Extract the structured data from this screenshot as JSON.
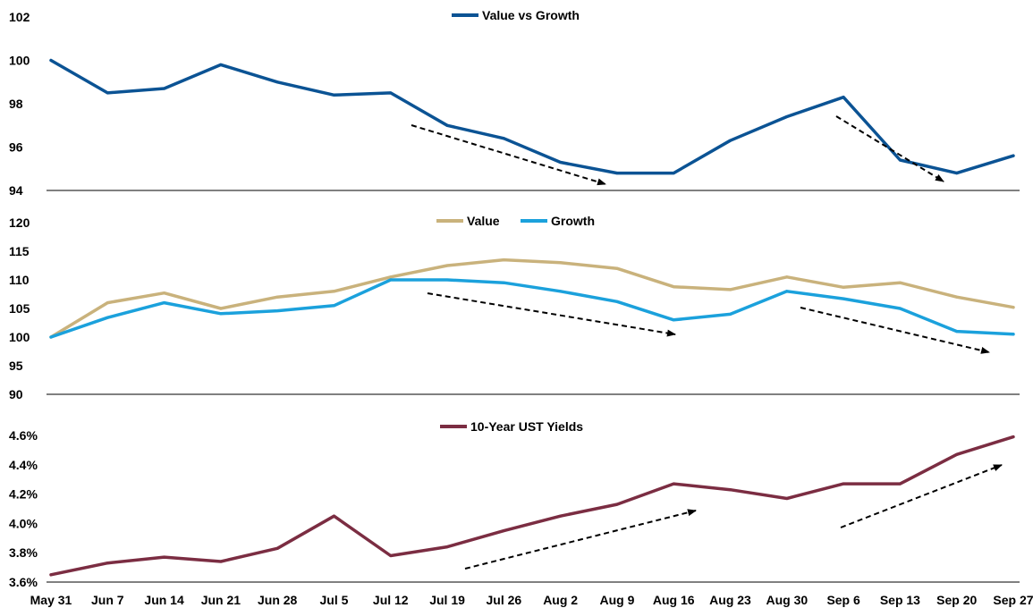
{
  "chart_data": {
    "type": "line",
    "x": [
      "May 31",
      "Jun 7",
      "Jun 14",
      "Jun 21",
      "Jun 28",
      "Jul 5",
      "Jul 12",
      "Jul 19",
      "Jul 26",
      "Aug 2",
      "Aug 9",
      "Aug 16",
      "Aug 23",
      "Aug 30",
      "Sep 6",
      "Sep 13",
      "Sep 20",
      "Sep 27"
    ],
    "panels": [
      {
        "ylim": [
          94,
          102
        ],
        "yticks": [
          "94",
          "96",
          "98",
          "100",
          "102"
        ],
        "series": [
          {
            "name": "Value vs Growth",
            "color": "#0b5394",
            "values": [
              100.0,
              98.5,
              98.7,
              99.8,
              99.0,
              98.4,
              98.5,
              97.0,
              96.4,
              95.3,
              94.8,
              94.8,
              96.3,
              97.4,
              98.3,
              95.4,
              94.8,
              95.6
            ]
          }
        ]
      },
      {
        "ylim": [
          90,
          120
        ],
        "yticks": [
          "90",
          "95",
          "100",
          "105",
          "110",
          "115",
          "120"
        ],
        "series": [
          {
            "name": "Value",
            "color": "#c9b27c",
            "values": [
              100.0,
              106.0,
              107.7,
              105.0,
              107.0,
              108.0,
              110.5,
              112.5,
              113.5,
              113.0,
              112.0,
              108.8,
              108.3,
              110.5,
              108.7,
              109.5,
              107.0,
              105.2
            ]
          },
          {
            "name": "Growth",
            "color": "#1ba1dc",
            "values": [
              100.0,
              103.4,
              106.0,
              104.1,
              104.6,
              105.5,
              110.0,
              110.0,
              109.5,
              108.0,
              106.2,
              103.0,
              104.0,
              108.0,
              106.7,
              105.0,
              101.0,
              100.5
            ]
          }
        ]
      },
      {
        "ylim": [
          3.6,
          4.6
        ],
        "yticks": [
          "3.6%",
          "3.8%",
          "4.0%",
          "4.2%",
          "4.4%",
          "4.6%"
        ],
        "series": [
          {
            "name": "10-Year UST Yields",
            "color": "#7b2d42",
            "values": [
              3.65,
              3.73,
              3.77,
              3.74,
              3.83,
              4.05,
              3.78,
              3.84,
              3.95,
              4.05,
              4.13,
              4.27,
              4.23,
              4.17,
              4.27,
              4.27,
              4.47,
              4.59
            ]
          }
        ]
      }
    ]
  }
}
